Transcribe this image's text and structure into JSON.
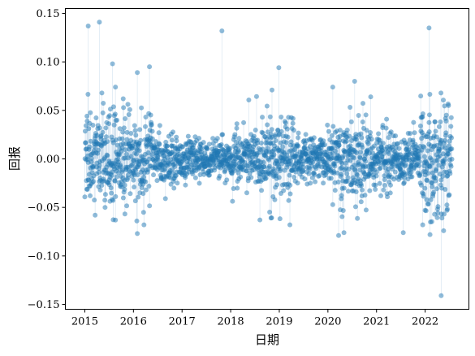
{
  "chart_data": {
    "type": "scatter",
    "title": "",
    "xlabel": "日期",
    "ylabel": "回报",
    "xlim": [
      2014.6,
      2022.9
    ],
    "ylim": [
      -0.155,
      0.155
    ],
    "x_ticks": [
      2015,
      2016,
      2017,
      2018,
      2019,
      2020,
      2021,
      2022
    ],
    "x_tick_labels": [
      "2015",
      "2016",
      "2017",
      "2018",
      "2019",
      "2020",
      "2021",
      "2022"
    ],
    "y_ticks": [
      -0.15,
      -0.1,
      -0.05,
      0.0,
      0.05,
      0.1,
      0.15
    ],
    "y_tick_labels": [
      "−0.15",
      "−0.10",
      "−0.05",
      "0.00",
      "0.05",
      "0.10",
      "0.15"
    ],
    "grid": false,
    "legend": "none",
    "colors": {
      "points": "#1f77b4",
      "stems": "#9ec1dd"
    },
    "marker_alpha": 0.5,
    "volatility_regimes": [
      {
        "from": 2015.0,
        "to": 2015.5,
        "scale": 0.022
      },
      {
        "from": 2015.5,
        "to": 2016.4,
        "scale": 0.024
      },
      {
        "from": 2016.4,
        "to": 2017.0,
        "scale": 0.012
      },
      {
        "from": 2017.0,
        "to": 2018.0,
        "scale": 0.009
      },
      {
        "from": 2018.0,
        "to": 2018.7,
        "scale": 0.015
      },
      {
        "from": 2018.7,
        "to": 2019.3,
        "scale": 0.022
      },
      {
        "from": 2019.3,
        "to": 2020.1,
        "scale": 0.011
      },
      {
        "from": 2020.1,
        "to": 2020.8,
        "scale": 0.024
      },
      {
        "from": 2020.8,
        "to": 2021.9,
        "scale": 0.014
      },
      {
        "from": 2021.9,
        "to": 2022.55,
        "scale": 0.028
      }
    ],
    "outliers": [
      {
        "x": 2015.07,
        "y": 0.137
      },
      {
        "x": 2015.3,
        "y": 0.141
      },
      {
        "x": 2015.57,
        "y": 0.098
      },
      {
        "x": 2015.63,
        "y": 0.074
      },
      {
        "x": 2015.79,
        "y": 0.062
      },
      {
        "x": 2016.08,
        "y": 0.089
      },
      {
        "x": 2016.33,
        "y": 0.095
      },
      {
        "x": 2016.08,
        "y": -0.077
      },
      {
        "x": 2016.07,
        "y": -0.064
      },
      {
        "x": 2015.63,
        "y": -0.063
      },
      {
        "x": 2017.82,
        "y": 0.132
      },
      {
        "x": 2018.83,
        "y": -0.061
      },
      {
        "x": 2018.99,
        "y": 0.094
      },
      {
        "x": 2018.85,
        "y": 0.071
      },
      {
        "x": 2020.1,
        "y": 0.074
      },
      {
        "x": 2020.22,
        "y": -0.079
      },
      {
        "x": 2020.33,
        "y": -0.076
      },
      {
        "x": 2020.55,
        "y": 0.08
      },
      {
        "x": 2020.88,
        "y": 0.064
      },
      {
        "x": 2021.55,
        "y": -0.076
      },
      {
        "x": 2022.08,
        "y": 0.135
      },
      {
        "x": 2022.1,
        "y": -0.078
      },
      {
        "x": 2022.33,
        "y": -0.141
      },
      {
        "x": 2022.38,
        "y": -0.074
      },
      {
        "x": 2022.45,
        "y": -0.053
      }
    ]
  }
}
